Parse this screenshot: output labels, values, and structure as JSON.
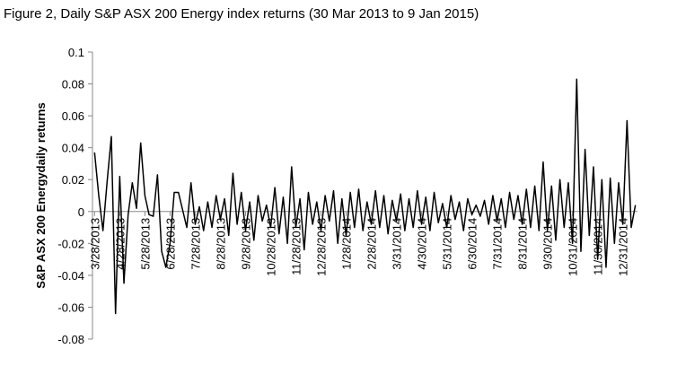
{
  "chart_data": {
    "type": "line",
    "title": "Figure 2, Daily S&P ASX 200 Energy index returns (30 Mar 2013 to 9 Jan 2015)",
    "y_label": "S&P ASX 200 Energydaily  returns",
    "color": "#000000",
    "ylim": [
      -0.08,
      0.1
    ],
    "yticks": [
      -0.08,
      -0.06,
      -0.04,
      -0.02,
      0,
      0.02,
      0.04,
      0.06,
      0.08,
      0.1
    ],
    "categories": [
      "3/28/2013",
      null,
      null,
      null,
      null,
      null,
      "4/28/2013",
      null,
      null,
      null,
      null,
      null,
      "5/28/2013",
      null,
      null,
      null,
      null,
      null,
      "6/28/2013",
      null,
      null,
      null,
      null,
      null,
      "7/28/2013",
      null,
      null,
      null,
      null,
      null,
      "8/28/2013",
      null,
      null,
      null,
      null,
      null,
      "9/28/2013",
      null,
      null,
      null,
      null,
      null,
      "10/28/2013",
      null,
      null,
      null,
      null,
      null,
      "11/28/2013",
      null,
      null,
      null,
      null,
      null,
      "12/28/2013",
      null,
      null,
      null,
      null,
      null,
      "1/28/2014",
      null,
      null,
      null,
      null,
      null,
      "2/28/2014",
      null,
      null,
      null,
      null,
      null,
      "3/31/2014",
      null,
      null,
      null,
      null,
      null,
      "4/30/2014",
      null,
      null,
      null,
      null,
      null,
      "5/31/2014",
      null,
      null,
      null,
      null,
      null,
      "6/30/2014",
      null,
      null,
      null,
      null,
      null,
      "7/31/2014",
      null,
      null,
      null,
      null,
      null,
      "8/31/2014",
      null,
      null,
      null,
      null,
      null,
      "9/30/2014",
      null,
      null,
      null,
      null,
      null,
      "10/31/2014",
      null,
      null,
      null,
      null,
      null,
      "11/30/2014",
      null,
      null,
      null,
      null,
      null,
      "12/31/2014",
      null,
      null,
      null
    ],
    "values": [
      0.037,
      0.01,
      -0.012,
      0.019,
      0.047,
      -0.064,
      0.022,
      -0.045,
      -0.002,
      0.018,
      0.002,
      0.043,
      0.01,
      -0.002,
      -0.003,
      0.023,
      -0.025,
      -0.035,
      -0.02,
      0.012,
      0.012,
      0.001,
      -0.01,
      0.018,
      -0.008,
      0.003,
      -0.012,
      0.006,
      -0.01,
      0.01,
      -0.005,
      0.008,
      -0.015,
      0.024,
      -0.008,
      0.012,
      -0.012,
      0.006,
      -0.018,
      0.01,
      -0.006,
      0.004,
      -0.01,
      0.015,
      -0.014,
      0.009,
      -0.02,
      0.028,
      -0.01,
      0.008,
      -0.024,
      0.012,
      -0.008,
      0.006,
      -0.012,
      0.01,
      -0.006,
      0.013,
      -0.02,
      0.008,
      -0.015,
      0.012,
      -0.01,
      0.014,
      -0.012,
      0.006,
      -0.008,
      0.013,
      -0.01,
      0.01,
      -0.014,
      0.007,
      -0.006,
      0.011,
      -0.012,
      0.008,
      -0.01,
      0.013,
      -0.008,
      0.009,
      -0.012,
      0.012,
      -0.007,
      0.005,
      -0.01,
      0.01,
      -0.005,
      0.006,
      -0.012,
      0.008,
      -0.002,
      0.004,
      -0.003,
      0.007,
      -0.008,
      0.01,
      -0.006,
      0.008,
      -0.01,
      0.012,
      -0.005,
      0.01,
      -0.008,
      0.014,
      -0.01,
      0.016,
      -0.012,
      0.031,
      -0.012,
      0.016,
      -0.018,
      0.02,
      -0.01,
      0.018,
      -0.02,
      0.083,
      -0.025,
      0.039,
      -0.015,
      0.028,
      -0.03,
      0.02,
      -0.035,
      0.021,
      -0.02,
      0.018,
      -0.008,
      0.057,
      -0.01,
      0.004
    ]
  }
}
